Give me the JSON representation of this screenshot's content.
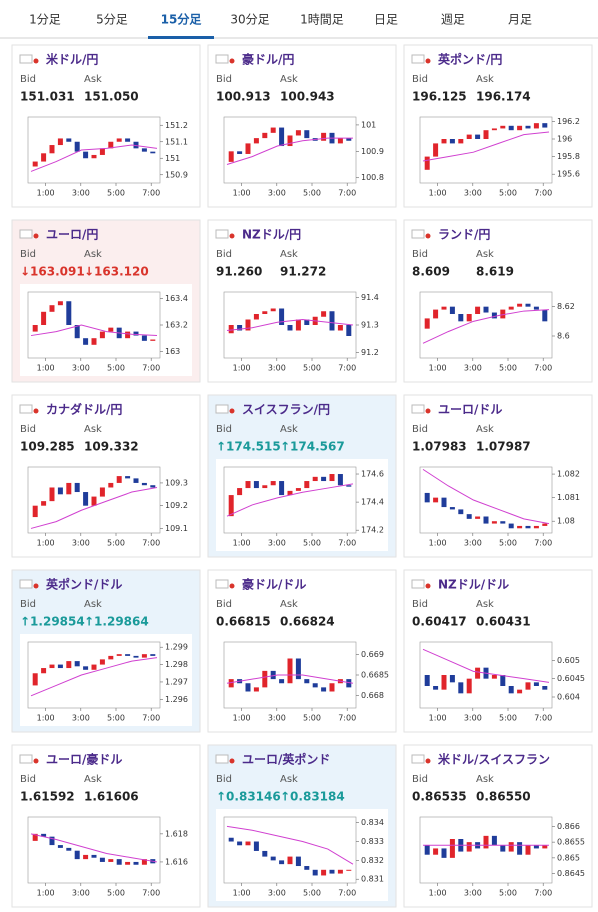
{
  "tabs": [
    "1分足",
    "5分足",
    "15分足",
    "30分足",
    "1時間足",
    "日足",
    "週足",
    "月足"
  ],
  "active_tab": 2,
  "cards": [
    {
      "title": "米ドル/円",
      "bid_label": "Bid",
      "ask_label": "Ask",
      "bid": "151.031",
      "ask": "151.050",
      "chart": {
        "ylim": [
          150.85,
          151.25
        ],
        "yticks": [
          151.2,
          151.1,
          151,
          150.9
        ],
        "xlim": [
          0,
          7.5
        ],
        "xticks": [
          {
            "value": 1,
            "label": "1:00"
          },
          {
            "value": 3,
            "label": "3:00"
          },
          {
            "value": 5,
            "label": "5:00"
          },
          {
            "value": 7,
            "label": "7:00"
          }
        ],
        "close": [
          150.95,
          150.98,
          151.03,
          151.08,
          151.12,
          151.1,
          151.04,
          151.0,
          151.02,
          151.06,
          151.1,
          151.12,
          151.1,
          151.06,
          151.04,
          151.03
        ],
        "ma": [
          150.92,
          150.98,
          151.05,
          151.06,
          151.08,
          151.06
        ]
      }
    },
    {
      "title": "豪ドル/円",
      "bid_label": "Bid",
      "ask_label": "Ask",
      "bid": "100.913",
      "ask": "100.943",
      "chart": {
        "ylim": [
          100.78,
          101.03
        ],
        "yticks": [
          101,
          100.9,
          100.8
        ],
        "xlim": [
          0,
          7.5
        ],
        "xticks": [
          {
            "value": 1,
            "label": "1:00"
          },
          {
            "value": 3,
            "label": "3:00"
          },
          {
            "value": 5,
            "label": "5:00"
          },
          {
            "value": 7,
            "label": "7:00"
          }
        ],
        "close": [
          100.86,
          100.9,
          100.89,
          100.93,
          100.95,
          100.97,
          100.99,
          100.92,
          100.96,
          100.98,
          100.95,
          100.94,
          100.97,
          100.93,
          100.95,
          100.94
        ],
        "ma": [
          100.85,
          100.88,
          100.92,
          100.94,
          100.95,
          100.95
        ]
      }
    },
    {
      "title": "英ポンド/円",
      "bid_label": "Bid",
      "ask_label": "Ask",
      "bid": "196.125",
      "ask": "196.174",
      "chart": {
        "ylim": [
          195.5,
          196.25
        ],
        "yticks": [
          196.2,
          196,
          195.8,
          195.6
        ],
        "xlim": [
          0,
          7.5
        ],
        "xticks": [
          {
            "value": 1,
            "label": "1:00"
          },
          {
            "value": 3,
            "label": "3:00"
          },
          {
            "value": 5,
            "label": "5:00"
          },
          {
            "value": 7,
            "label": "7:00"
          }
        ],
        "close": [
          195.65,
          195.8,
          195.95,
          196.0,
          195.95,
          196.0,
          196.05,
          196.0,
          196.1,
          196.12,
          196.15,
          196.1,
          196.15,
          196.12,
          196.18,
          196.13
        ],
        "ma": [
          195.75,
          195.8,
          195.85,
          195.95,
          196.05,
          196.08
        ]
      }
    },
    {
      "title": "ユーロ/円",
      "bid_label": "Bid",
      "ask_label": "Ask",
      "bid": "↓163.091",
      "ask": "↓163.120",
      "trend": "down",
      "background": "#fbeeee",
      "chart": {
        "ylim": [
          162.95,
          163.45
        ],
        "yticks": [
          163.4,
          163.2,
          163
        ],
        "xlim": [
          0,
          7.5
        ],
        "xticks": [
          {
            "value": 1,
            "label": "1:00"
          },
          {
            "value": 3,
            "label": "3:00"
          },
          {
            "value": 5,
            "label": "5:00"
          },
          {
            "value": 7,
            "label": "7:00"
          }
        ],
        "close": [
          163.15,
          163.2,
          163.3,
          163.35,
          163.38,
          163.2,
          163.1,
          163.05,
          163.1,
          163.15,
          163.18,
          163.1,
          163.15,
          163.12,
          163.08,
          163.09
        ],
        "ma": [
          163.12,
          163.15,
          163.2,
          163.15,
          163.13,
          163.12
        ]
      }
    },
    {
      "title": "NZドル/円",
      "bid_label": "Bid",
      "ask_label": "Ask",
      "bid": "91.260",
      "ask": "91.272",
      "chart": {
        "ylim": [
          91.18,
          91.42
        ],
        "yticks": [
          91.4,
          91.3,
          91.2
        ],
        "xlim": [
          0,
          7.5
        ],
        "xticks": [
          {
            "value": 1,
            "label": "1:00"
          },
          {
            "value": 3,
            "label": "3:00"
          },
          {
            "value": 5,
            "label": "5:00"
          },
          {
            "value": 7,
            "label": "7:00"
          }
        ],
        "close": [
          91.27,
          91.3,
          91.28,
          91.32,
          91.34,
          91.35,
          91.36,
          91.3,
          91.28,
          91.32,
          91.3,
          91.33,
          91.35,
          91.28,
          91.3,
          91.26
        ],
        "ma": [
          91.28,
          91.29,
          91.31,
          91.32,
          91.31,
          91.3
        ]
      }
    },
    {
      "title": "ランド/円",
      "bid_label": "Bid",
      "ask_label": "Ask",
      "bid": "8.609",
      "ask": "8.619",
      "chart": {
        "ylim": [
          8.585,
          8.63
        ],
        "yticks": [
          8.62,
          8.6
        ],
        "xlim": [
          0,
          7.5
        ],
        "xticks": [
          {
            "value": 1,
            "label": "1:00"
          },
          {
            "value": 3,
            "label": "3:00"
          },
          {
            "value": 5,
            "label": "5:00"
          },
          {
            "value": 7,
            "label": "7:00"
          }
        ],
        "close": [
          8.605,
          8.612,
          8.618,
          8.62,
          8.615,
          8.61,
          8.615,
          8.62,
          8.616,
          8.612,
          8.618,
          8.62,
          8.622,
          8.62,
          8.618,
          8.61
        ],
        "ma": [
          8.595,
          8.603,
          8.61,
          8.614,
          8.617,
          8.618
        ]
      }
    },
    {
      "title": "カナダドル/円",
      "bid_label": "Bid",
      "ask_label": "Ask",
      "bid": "109.285",
      "ask": "109.332",
      "chart": {
        "ylim": [
          109.08,
          109.37
        ],
        "yticks": [
          109.3,
          109.2,
          109.1
        ],
        "xlim": [
          0,
          7.5
        ],
        "xticks": [
          {
            "value": 1,
            "label": "1:00"
          },
          {
            "value": 3,
            "label": "3:00"
          },
          {
            "value": 5,
            "label": "5:00"
          },
          {
            "value": 7,
            "label": "7:00"
          }
        ],
        "close": [
          109.15,
          109.2,
          109.22,
          109.28,
          109.25,
          109.3,
          109.26,
          109.2,
          109.24,
          109.28,
          109.3,
          109.33,
          109.32,
          109.3,
          109.29,
          109.28
        ],
        "ma": [
          109.1,
          109.13,
          109.18,
          109.22,
          109.26,
          109.28
        ]
      }
    },
    {
      "title": "スイスフラン/円",
      "bid_label": "Bid",
      "ask_label": "Ask",
      "bid": "↑174.515",
      "ask": "↑174.567",
      "trend": "up",
      "background": "#e9f3fb",
      "chart": {
        "ylim": [
          174.18,
          174.65
        ],
        "yticks": [
          174.6,
          174.4,
          174.2
        ],
        "xlim": [
          0,
          7.5
        ],
        "xticks": [
          {
            "value": 1,
            "label": "1:00"
          },
          {
            "value": 3,
            "label": "3:00"
          },
          {
            "value": 5,
            "label": "5:00"
          },
          {
            "value": 7,
            "label": "7:00"
          }
        ],
        "close": [
          174.3,
          174.45,
          174.5,
          174.55,
          174.5,
          174.52,
          174.55,
          174.45,
          174.48,
          174.5,
          174.55,
          174.58,
          174.55,
          174.6,
          174.52,
          174.51
        ],
        "ma": [
          174.3,
          174.38,
          174.43,
          174.47,
          174.5,
          174.53
        ]
      }
    },
    {
      "title": "ユーロ/ドル",
      "bid_label": "Bid",
      "ask_label": "Ask",
      "bid": "1.07983",
      "ask": "1.07987",
      "chart": {
        "ylim": [
          1.0795,
          1.0823
        ],
        "yticks": [
          1.082,
          1.081,
          1.08
        ],
        "xlim": [
          0,
          7.5
        ],
        "xticks": [
          {
            "value": 1,
            "label": "1:00"
          },
          {
            "value": 3,
            "label": "3:00"
          },
          {
            "value": 5,
            "label": "5:00"
          },
          {
            "value": 7,
            "label": "7:00"
          }
        ],
        "close": [
          1.0812,
          1.0808,
          1.081,
          1.0806,
          1.0805,
          1.0803,
          1.0801,
          1.0802,
          1.0799,
          1.08,
          1.0799,
          1.0797,
          1.0798,
          1.0797,
          1.0798,
          1.0799
        ],
        "ma": [
          1.0822,
          1.0815,
          1.0809,
          1.0805,
          1.0801,
          1.0799
        ]
      }
    },
    {
      "title": "英ポンド/ドル",
      "bid_label": "Bid",
      "ask_label": "Ask",
      "bid": "↑1.29854",
      "ask": "↑1.29864",
      "trend": "up",
      "background": "#e9f3fb",
      "chart": {
        "ylim": [
          1.2955,
          1.2993
        ],
        "yticks": [
          1.299,
          1.298,
          1.297,
          1.296
        ],
        "xlim": [
          0,
          7.5
        ],
        "xticks": [
          {
            "value": 1,
            "label": "1:00"
          },
          {
            "value": 3,
            "label": "3:00"
          },
          {
            "value": 5,
            "label": "5:00"
          },
          {
            "value": 7,
            "label": "7:00"
          }
        ],
        "close": [
          1.2968,
          1.2975,
          1.2978,
          1.298,
          1.2978,
          1.2982,
          1.2979,
          1.2977,
          1.298,
          1.2983,
          1.2985,
          1.2986,
          1.2985,
          1.2984,
          1.2986,
          1.2985
        ],
        "ma": [
          1.2962,
          1.2968,
          1.2974,
          1.2978,
          1.2982,
          1.2984
        ]
      }
    },
    {
      "title": "豪ドル/ドル",
      "bid_label": "Bid",
      "ask_label": "Ask",
      "bid": "0.66815",
      "ask": "0.66824",
      "chart": {
        "ylim": [
          0.6677,
          0.6693
        ],
        "yticks": [
          0.669,
          0.6685,
          0.668
        ],
        "xlim": [
          0,
          7.5
        ],
        "xticks": [
          {
            "value": 1,
            "label": "1:00"
          },
          {
            "value": 3,
            "label": "3:00"
          },
          {
            "value": 5,
            "label": "5:00"
          },
          {
            "value": 7,
            "label": "7:00"
          }
        ],
        "close": [
          0.6682,
          0.6684,
          0.6683,
          0.6681,
          0.6682,
          0.6686,
          0.6684,
          0.6683,
          0.6689,
          0.6684,
          0.6683,
          0.6682,
          0.6681,
          0.6683,
          0.6684,
          0.6682
        ],
        "ma": [
          0.6683,
          0.6684,
          0.6685,
          0.6685,
          0.6684,
          0.6683
        ]
      }
    },
    {
      "title": "NZドル/ドル",
      "bid_label": "Bid",
      "ask_label": "Ask",
      "bid": "0.60417",
      "ask": "0.60431",
      "chart": {
        "ylim": [
          0.6037,
          0.6055
        ],
        "yticks": [
          0.605,
          0.6045,
          0.604
        ],
        "xlim": [
          0,
          7.5
        ],
        "xticks": [
          {
            "value": 1,
            "label": "1:00"
          },
          {
            "value": 3,
            "label": "3:00"
          },
          {
            "value": 5,
            "label": "5:00"
          },
          {
            "value": 7,
            "label": "7:00"
          }
        ],
        "close": [
          0.6046,
          0.6043,
          0.6042,
          0.6046,
          0.6044,
          0.6041,
          0.6045,
          0.6048,
          0.6045,
          0.6046,
          0.6043,
          0.6041,
          0.6042,
          0.6044,
          0.6043,
          0.6042
        ],
        "ma": [
          0.6053,
          0.605,
          0.6047,
          0.6046,
          0.6045,
          0.6044
        ]
      }
    },
    {
      "title": "ユーロ/豪ドル",
      "bid_label": "Bid",
      "ask_label": "Ask",
      "bid": "1.61592",
      "ask": "1.61606",
      "chart": {
        "ylim": [
          1.6145,
          1.6192
        ],
        "yticks": [
          1.618,
          1.616
        ],
        "xlim": [
          0,
          7.5
        ],
        "xticks": [
          {
            "value": 1,
            "label": "1:00"
          },
          {
            "value": 3,
            "label": "3:00"
          },
          {
            "value": 5,
            "label": "5:00"
          },
          {
            "value": 7,
            "label": "7:00"
          }
        ],
        "close": [
          1.6175,
          1.618,
          1.6178,
          1.6172,
          1.617,
          1.6168,
          1.6162,
          1.6165,
          1.6163,
          1.616,
          1.6162,
          1.6158,
          1.616,
          1.6158,
          1.6162,
          1.6159
        ],
        "ma": [
          1.618,
          1.6176,
          1.6171,
          1.6166,
          1.6163,
          1.616
        ]
      }
    },
    {
      "title": "ユーロ/英ポンド",
      "bid_label": "Bid",
      "ask_label": "Ask",
      "bid": "↑0.83146",
      "ask": "↑0.83184",
      "trend": "up",
      "background": "#e9f3fb",
      "chart": {
        "ylim": [
          0.8308,
          0.8343
        ],
        "yticks": [
          0.834,
          0.833,
          0.832,
          0.831
        ],
        "xlim": [
          0,
          7.5
        ],
        "xticks": [
          {
            "value": 1,
            "label": "1:00"
          },
          {
            "value": 3,
            "label": "3:00"
          },
          {
            "value": 5,
            "label": "5:00"
          },
          {
            "value": 7,
            "label": "7:00"
          }
        ],
        "close": [
          0.8332,
          0.833,
          0.8328,
          0.833,
          0.8325,
          0.8322,
          0.832,
          0.8318,
          0.8322,
          0.8317,
          0.8315,
          0.8312,
          0.8315,
          0.8313,
          0.8315,
          0.8315
        ],
        "ma": [
          0.8338,
          0.8336,
          0.8333,
          0.833,
          0.8326,
          0.8318
        ]
      }
    },
    {
      "title": "米ドル/スイスフラン",
      "bid_label": "Bid",
      "ask_label": "Ask",
      "bid": "0.86535",
      "ask": "0.86550",
      "chart": {
        "ylim": [
          0.8642,
          0.8663
        ],
        "yticks": [
          0.866,
          0.8655,
          0.865,
          0.8645
        ],
        "xlim": [
          0,
          7.5
        ],
        "xticks": [
          {
            "value": 1,
            "label": "1:00"
          },
          {
            "value": 3,
            "label": "3:00"
          },
          {
            "value": 5,
            "label": "5:00"
          },
          {
            "value": 7,
            "label": "7:00"
          }
        ],
        "close": [
          0.8654,
          0.8651,
          0.8653,
          0.865,
          0.8656,
          0.8652,
          0.8655,
          0.8653,
          0.8657,
          0.8654,
          0.8652,
          0.8655,
          0.8651,
          0.8654,
          0.8653,
          0.8654
        ],
        "ma": [
          0.8654,
          0.8654,
          0.8654,
          0.8654,
          0.8654,
          0.8654
        ]
      }
    }
  ]
}
